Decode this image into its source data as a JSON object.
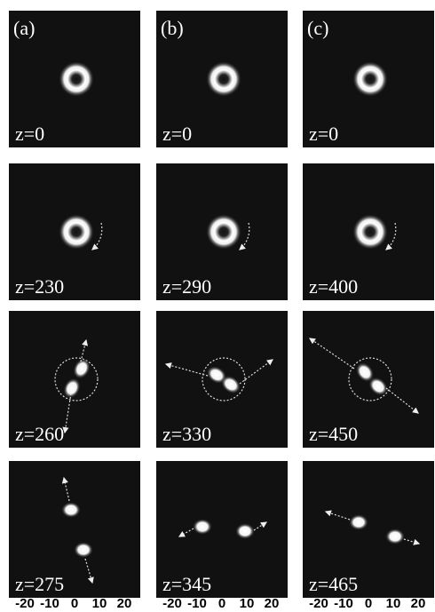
{
  "columns": [
    {
      "label": "(a)",
      "panels": [
        "z=0",
        "z=230",
        "z=260",
        "z=275"
      ]
    },
    {
      "label": "(b)",
      "panels": [
        "z=0",
        "z=290",
        "z=330",
        "z=345"
      ]
    },
    {
      "label": "(c)",
      "panels": [
        "z=0",
        "z=400",
        "z=450",
        "z=465"
      ]
    }
  ],
  "axis_ticks": [
    -20,
    -10,
    0,
    10,
    20
  ]
}
